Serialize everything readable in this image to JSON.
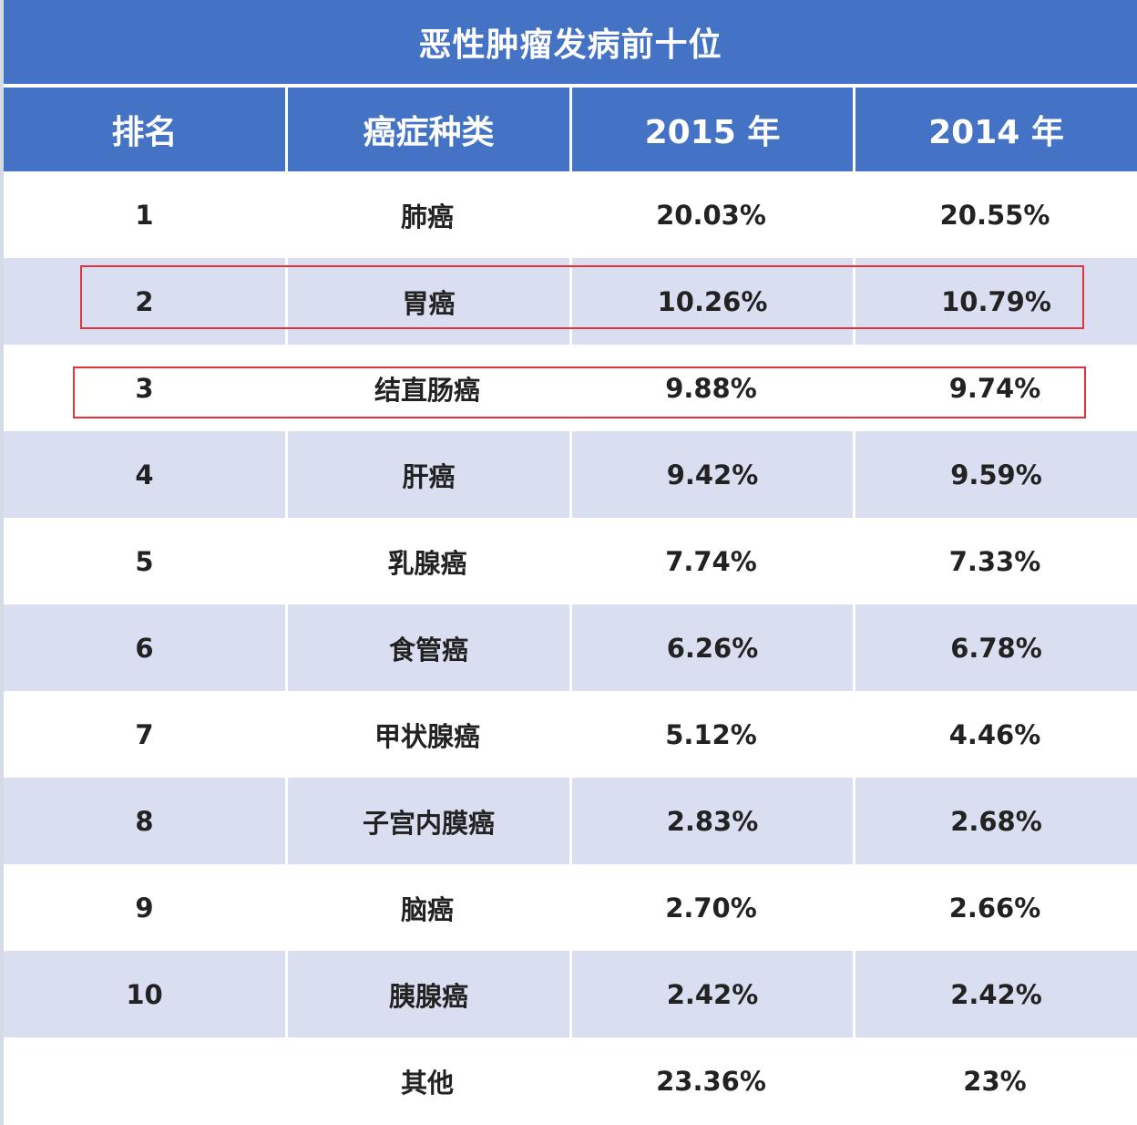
{
  "title": "恶性肿瘤发病前十位",
  "columns": [
    "排名",
    "癌症种类",
    "2015 年",
    "2014 年"
  ],
  "rows": [
    {
      "rank": "1",
      "type": "肺癌",
      "y2015": "20.03%",
      "y2014": "20.55%"
    },
    {
      "rank": "2",
      "type": "胃癌",
      "y2015": "10.26%",
      "y2014": "10.79%"
    },
    {
      "rank": "3",
      "type": "结直肠癌",
      "y2015": "9.88%",
      "y2014": "9.74%"
    },
    {
      "rank": "4",
      "type": "肝癌",
      "y2015": "9.42%",
      "y2014": "9.59%"
    },
    {
      "rank": "5",
      "type": "乳腺癌",
      "y2015": "7.74%",
      "y2014": "7.33%"
    },
    {
      "rank": "6",
      "type": "食管癌",
      "y2015": "6.26%",
      "y2014": "6.78%"
    },
    {
      "rank": "7",
      "type": "甲状腺癌",
      "y2015": "5.12%",
      "y2014": "4.46%"
    },
    {
      "rank": "8",
      "type": "子宫内膜癌",
      "y2015": "2.83%",
      "y2014": "2.68%"
    },
    {
      "rank": "9",
      "type": "脑癌",
      "y2015": "2.70%",
      "y2014": "2.66%"
    },
    {
      "rank": "10",
      "type": "胰腺癌",
      "y2015": "2.42%",
      "y2014": "2.42%"
    },
    {
      "rank": "",
      "type": "其他",
      "y2015": "23.36%",
      "y2014": "23%"
    }
  ],
  "colors": {
    "header_bg": "#4472c4",
    "row_shade": "#d9dff0",
    "highlight": "#e0343a"
  }
}
